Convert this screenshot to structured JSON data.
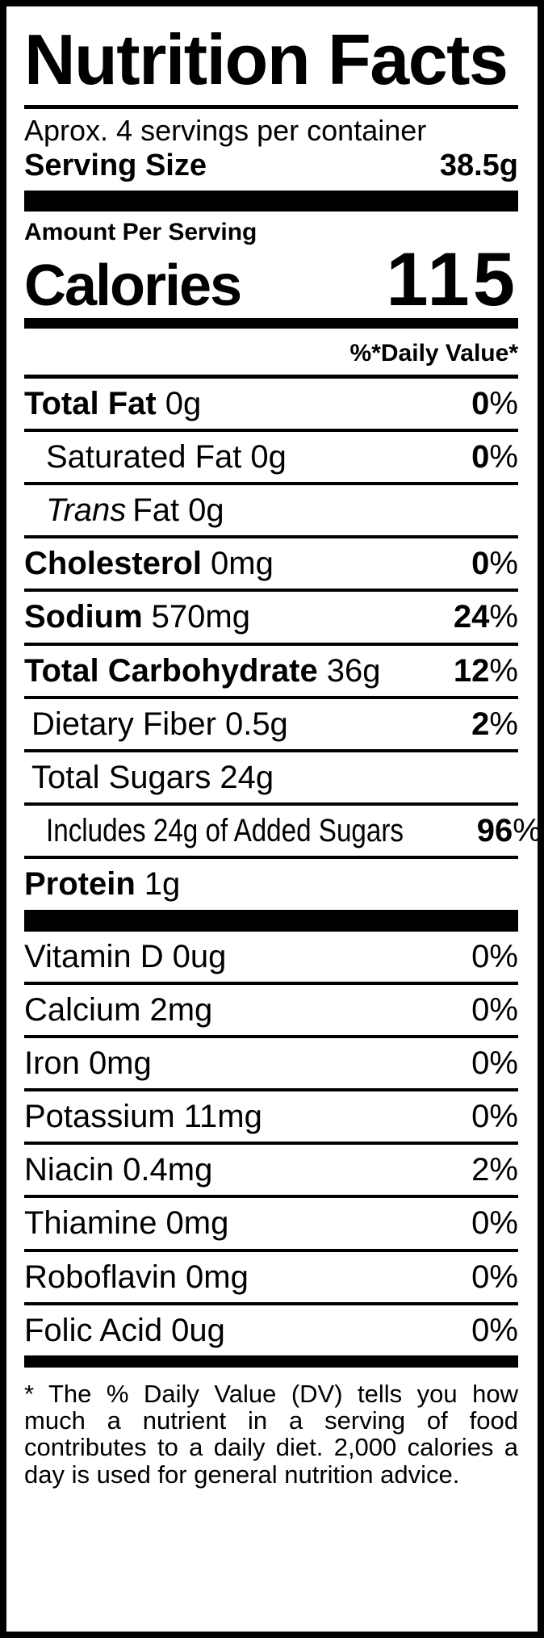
{
  "colors": {
    "ink": "#000000",
    "paper": "#ffffff"
  },
  "percent_sign": "%",
  "label": {
    "title": "Nutrition Facts",
    "servings_line": "Aprox. 4 servings per container",
    "serving_size": {
      "label": "Serving Size",
      "value": "38.5g"
    },
    "amount_per_serving": "Amount Per Serving",
    "calories": {
      "label": "Calories",
      "value": "115"
    },
    "daily_value_header": "%*Daily Value*",
    "nutrients": [
      {
        "name": "Total Fat",
        "name_bold": true,
        "amount": "0g",
        "dv": "0",
        "dv_bold": true,
        "indent": 0
      },
      {
        "name": "Saturated Fat",
        "name_bold": false,
        "amount": "0g",
        "dv": "0",
        "dv_bold": true,
        "indent": 2
      },
      {
        "name_italic": "Trans",
        "name": "Fat",
        "name_bold": false,
        "amount": "0g",
        "indent": 2
      },
      {
        "name": "Cholesterol",
        "name_bold": true,
        "amount": "0mg",
        "dv": "0",
        "dv_bold": true,
        "indent": 0
      },
      {
        "name": "Sodium",
        "name_bold": true,
        "amount": "570mg",
        "dv": "24",
        "dv_bold": true,
        "indent": 0
      },
      {
        "name": "Total Carbohydrate",
        "name_bold": true,
        "amount": "36g",
        "dv": "12",
        "dv_bold": true,
        "indent": 0
      },
      {
        "name": "Dietary Fiber",
        "name_bold": false,
        "amount": "0.5g",
        "dv": "2",
        "dv_bold": true,
        "indent": 1
      },
      {
        "name": "Total Sugars",
        "name_bold": false,
        "amount": "24g",
        "indent": 1
      },
      {
        "name": "Includes 24g of Added Sugars",
        "name_bold": false,
        "amount": "",
        "dv": "96",
        "dv_bold": true,
        "indent": 2,
        "condensed": true
      },
      {
        "name": "Protein",
        "name_bold": true,
        "amount": "1g",
        "indent": 0
      }
    ],
    "micronutrients": [
      {
        "name": "Vitamin D",
        "amount": "0ug",
        "dv": "0"
      },
      {
        "name": "Calcium",
        "amount": "2mg",
        "dv": "0"
      },
      {
        "name": "Iron",
        "amount": "0mg",
        "dv": "0"
      },
      {
        "name": "Potassium",
        "amount": "11mg",
        "dv": "0"
      },
      {
        "name": "Niacin",
        "amount": "0.4mg",
        "dv": "2"
      },
      {
        "name": "Thiamine",
        "amount": "0mg",
        "dv": "0"
      },
      {
        "name": "Roboflavin",
        "amount": "0mg",
        "dv": "0"
      },
      {
        "name": "Folic Acid",
        "amount": "0ug",
        "dv": "0"
      }
    ],
    "footnote": "* The % Daily Value (DV) tells you how much a nutrient in a serving of food contributes to a daily diet. 2,000 calories a day is used for general nutrition advice."
  }
}
